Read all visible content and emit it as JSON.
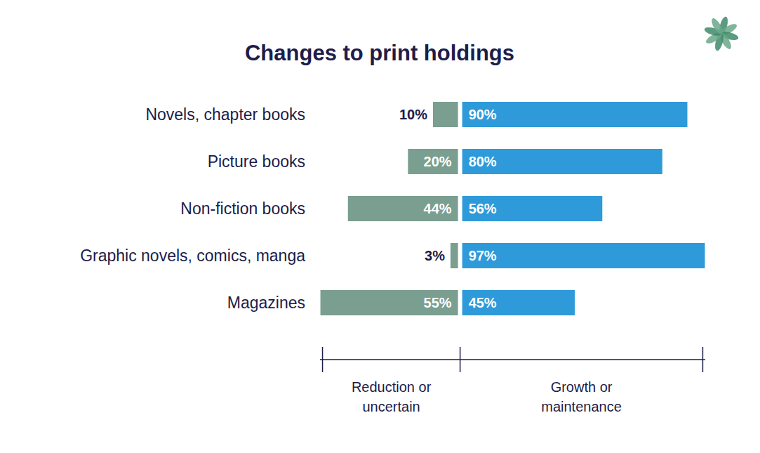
{
  "chart_data": {
    "type": "bar",
    "orientation": "horizontal",
    "title": "Changes to print holdings",
    "categories": [
      "Novels, chapter books",
      "Picture books",
      "Non-fiction books",
      "Graphic novels, comics, manga",
      "Magazines"
    ],
    "series": [
      {
        "name": "Reduction or uncertain",
        "color": "#7a9e8f",
        "values": [
          10,
          20,
          44,
          3,
          55
        ],
        "value_labels": [
          "10%",
          "20%",
          "44%",
          "3%",
          "55%"
        ]
      },
      {
        "name": "Growth or maintenance",
        "color": "#2e9ad9",
        "values": [
          90,
          80,
          56,
          97,
          45
        ],
        "value_labels": [
          "90%",
          "80%",
          "56%",
          "97%",
          "45%"
        ]
      }
    ],
    "xlim": [
      -56,
      98
    ],
    "xticks": [
      -55,
      0,
      97
    ],
    "tick_labels": false,
    "data_labels": true,
    "grid": false
  }
}
